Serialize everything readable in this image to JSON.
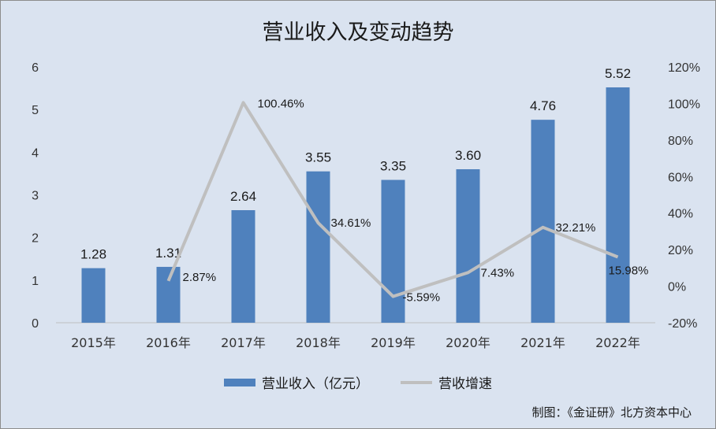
{
  "chart_data": {
    "type": "bar",
    "title": "营业收入及变动趋势",
    "categories": [
      "2015年",
      "2016年",
      "2017年",
      "2018年",
      "2019年",
      "2020年",
      "2021年",
      "2022年"
    ],
    "series": [
      {
        "name": "营业收入（亿元）",
        "type": "bar",
        "axis": "left",
        "color": "#4f81bd",
        "values": [
          1.28,
          1.31,
          2.64,
          3.55,
          3.35,
          3.6,
          4.76,
          5.52
        ],
        "labels": [
          "1.28",
          "1.31",
          "2.64",
          "3.55",
          "3.35",
          "3.60",
          "4.76",
          "5.52"
        ]
      },
      {
        "name": "营收增速",
        "type": "line",
        "axis": "right",
        "color": "#bfbfbf",
        "values": [
          null,
          2.87,
          100.46,
          34.61,
          -5.59,
          7.43,
          32.21,
          15.98
        ],
        "labels": [
          "",
          "2.87%",
          "100.46%",
          "34.61%",
          "-5.59%",
          "7.43%",
          "32.21%",
          "15.98%"
        ]
      }
    ],
    "y_left": {
      "ylim": [
        0,
        6
      ],
      "ticks": [
        "0",
        "1",
        "2",
        "3",
        "4",
        "5",
        "6"
      ]
    },
    "y_right": {
      "ylim": [
        -20,
        120
      ],
      "ticks": [
        "-20%",
        "0%",
        "20%",
        "40%",
        "60%",
        "80%",
        "100%",
        "120%"
      ]
    },
    "grid": false,
    "legend_position": "bottom"
  },
  "legend": {
    "bar_label": "营业收入（亿元）",
    "line_label": "营收增速"
  },
  "credit": "制图：《金证研》北方资本中心"
}
